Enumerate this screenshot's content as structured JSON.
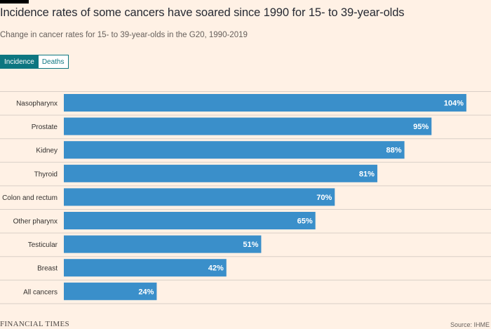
{
  "header": {
    "title": "Incidence rates of some cancers have soared since 1990 for 15- to 39-year-olds",
    "subtitle": "Change in cancer rates for 15- to 39-year-olds in the G20, 1990-2019"
  },
  "toggle": {
    "active_label": "Incidence",
    "inactive_label": "Deaths"
  },
  "footer": {
    "brand": "FINANCIAL TIMES",
    "source": "Source: IHME"
  },
  "colors": {
    "background": "#fff1e5",
    "bar": "#3a8fca",
    "toggle_active": "#0d7680",
    "gridline": "#d9cfc7"
  },
  "chart_data": {
    "type": "bar",
    "orientation": "horizontal",
    "categories": [
      "Nasopharynx",
      "Prostate",
      "Kidney",
      "Thyroid",
      "Colon and rectum",
      "Other pharynx",
      "Testicular",
      "Breast",
      "All cancers"
    ],
    "values": [
      104,
      95,
      88,
      81,
      70,
      65,
      51,
      42,
      24
    ],
    "data_labels": [
      "104%",
      "95%",
      "88%",
      "81%",
      "70%",
      "65%",
      "51%",
      "42%",
      "24%"
    ],
    "unit": "%",
    "xlim": [
      0,
      110
    ]
  }
}
